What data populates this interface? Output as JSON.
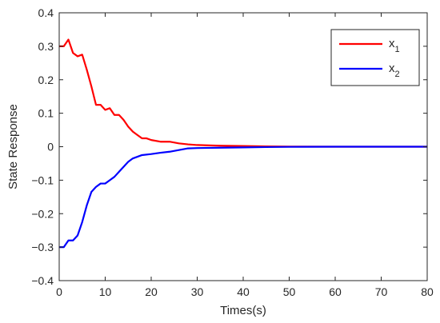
{
  "chart_data": {
    "type": "line",
    "title": "",
    "xlabel": "Times(s)",
    "ylabel": "State Response",
    "xlim": [
      0,
      80
    ],
    "ylim": [
      -0.4,
      0.4
    ],
    "xticks": [
      0,
      10,
      20,
      30,
      40,
      50,
      60,
      70,
      80
    ],
    "xtick_labels": [
      "0",
      "10",
      "20",
      "30",
      "40",
      "50",
      "60",
      "70",
      "80"
    ],
    "yticks": [
      -0.4,
      -0.3,
      -0.2,
      -0.1,
      0,
      0.1,
      0.2,
      0.3,
      0.4
    ],
    "ytick_labels": [
      "−0.4",
      "−0.3",
      "−0.2",
      "−0.1",
      "0",
      "0.1",
      "0.2",
      "0.3",
      "0.4"
    ],
    "grid": false,
    "legend_position": "top-right",
    "series": [
      {
        "name_base": "x",
        "name_sub": "1",
        "color": "#ff0000",
        "points": [
          [
            0,
            0.3
          ],
          [
            1,
            0.3
          ],
          [
            2,
            0.32
          ],
          [
            3,
            0.28
          ],
          [
            4,
            0.27
          ],
          [
            5,
            0.275
          ],
          [
            6,
            0.23
          ],
          [
            7,
            0.18
          ],
          [
            8,
            0.125
          ],
          [
            9,
            0.125
          ],
          [
            10,
            0.11
          ],
          [
            11,
            0.115
          ],
          [
            12,
            0.095
          ],
          [
            13,
            0.095
          ],
          [
            14,
            0.08
          ],
          [
            15,
            0.06
          ],
          [
            16,
            0.045
          ],
          [
            17,
            0.035
          ],
          [
            18,
            0.025
          ],
          [
            19,
            0.025
          ],
          [
            20,
            0.02
          ],
          [
            22,
            0.015
          ],
          [
            24,
            0.015
          ],
          [
            26,
            0.01
          ],
          [
            28,
            0.007
          ],
          [
            30,
            0.005
          ],
          [
            35,
            0.003
          ],
          [
            40,
            0.002
          ],
          [
            45,
            0.001
          ],
          [
            50,
            0.0005
          ],
          [
            60,
            0
          ],
          [
            70,
            0
          ],
          [
            80,
            0
          ]
        ]
      },
      {
        "name_base": "x",
        "name_sub": "2",
        "color": "#0000ff",
        "points": [
          [
            0,
            -0.3
          ],
          [
            1,
            -0.3
          ],
          [
            2,
            -0.28
          ],
          [
            3,
            -0.28
          ],
          [
            4,
            -0.265
          ],
          [
            5,
            -0.225
          ],
          [
            6,
            -0.175
          ],
          [
            7,
            -0.135
          ],
          [
            8,
            -0.12
          ],
          [
            9,
            -0.11
          ],
          [
            10,
            -0.11
          ],
          [
            11,
            -0.1
          ],
          [
            12,
            -0.09
          ],
          [
            13,
            -0.075
          ],
          [
            14,
            -0.06
          ],
          [
            15,
            -0.045
          ],
          [
            16,
            -0.035
          ],
          [
            17,
            -0.03
          ],
          [
            18,
            -0.025
          ],
          [
            20,
            -0.022
          ],
          [
            22,
            -0.018
          ],
          [
            24,
            -0.015
          ],
          [
            26,
            -0.01
          ],
          [
            28,
            -0.005
          ],
          [
            30,
            -0.004
          ],
          [
            35,
            -0.003
          ],
          [
            40,
            -0.002
          ],
          [
            45,
            -0.001
          ],
          [
            50,
            -0.0005
          ],
          [
            60,
            0
          ],
          [
            70,
            0
          ],
          [
            80,
            0
          ]
        ]
      }
    ]
  }
}
